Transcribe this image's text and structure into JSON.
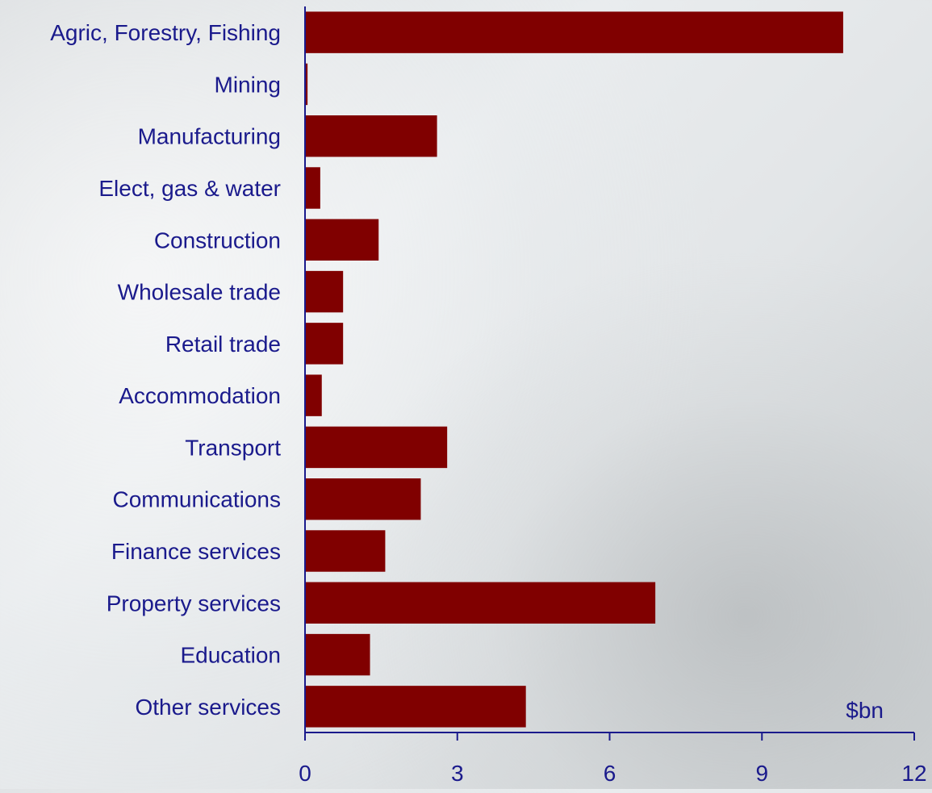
{
  "chart_data": {
    "type": "bar",
    "orientation": "horizontal",
    "categories": [
      "Agric, Forestry, Fishing",
      "Mining",
      "Manufacturing",
      "Elect, gas & water",
      "Construction",
      "Wholesale trade",
      "Retail trade",
      "Accommodation",
      "Transport",
      "Communications",
      "Finance services",
      "Property services",
      "Education",
      "Other services"
    ],
    "values": [
      10.6,
      0.05,
      2.6,
      0.3,
      1.45,
      0.75,
      0.75,
      0.33,
      2.8,
      2.28,
      1.58,
      6.9,
      1.28,
      4.35
    ],
    "xlim": [
      0,
      12
    ],
    "xticks": [
      "0",
      "3",
      "6",
      "9",
      "12"
    ],
    "unit_label": "$bn",
    "bar_color": "#800000",
    "axis_color": "#1a1a8c",
    "text_color": "#1a1a8c",
    "grid": false
  }
}
